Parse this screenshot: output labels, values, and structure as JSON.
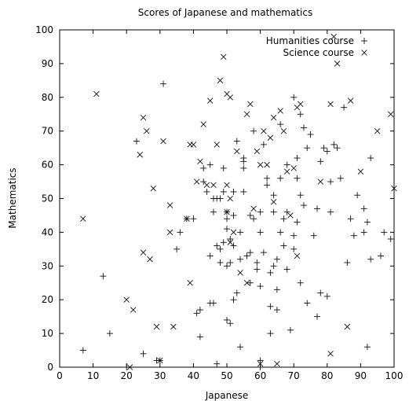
{
  "chart_data": {
    "type": "scatter",
    "title": "Scores of Japanese and mathematics",
    "xlabel": "Japanese",
    "ylabel": "Mathematics",
    "xlim": [
      0,
      100
    ],
    "ylim": [
      0,
      100
    ],
    "xticks": [
      0,
      10,
      20,
      30,
      40,
      50,
      60,
      70,
      80,
      90,
      100
    ],
    "yticks": [
      0,
      10,
      20,
      30,
      40,
      50,
      60,
      70,
      80,
      90,
      100
    ],
    "grid": false,
    "legend_position": "top-right",
    "series": [
      {
        "name": "Humanities course",
        "marker": "plus",
        "points": [
          [
            7,
            5
          ],
          [
            13,
            27
          ],
          [
            15,
            10
          ],
          [
            20,
            0
          ],
          [
            23,
            67
          ],
          [
            25,
            4
          ],
          [
            29,
            2
          ],
          [
            30,
            2
          ],
          [
            31,
            84
          ],
          [
            35,
            35
          ],
          [
            36,
            40
          ],
          [
            38,
            44
          ],
          [
            40,
            44
          ],
          [
            41,
            16
          ],
          [
            42,
            17
          ],
          [
            42,
            9
          ],
          [
            43,
            59
          ],
          [
            43,
            55
          ],
          [
            44,
            52
          ],
          [
            45,
            19
          ],
          [
            45,
            33
          ],
          [
            45,
            60
          ],
          [
            46,
            19
          ],
          [
            46,
            46
          ],
          [
            46,
            50
          ],
          [
            47,
            36
          ],
          [
            47,
            50
          ],
          [
            47,
            1
          ],
          [
            48,
            31
          ],
          [
            48,
            35
          ],
          [
            48,
            50
          ],
          [
            49,
            37
          ],
          [
            49,
            52
          ],
          [
            49,
            59
          ],
          [
            50,
            41
          ],
          [
            50,
            44
          ],
          [
            50,
            46
          ],
          [
            50,
            30
          ],
          [
            50,
            14
          ],
          [
            51,
            38
          ],
          [
            51,
            31
          ],
          [
            51,
            13
          ],
          [
            52,
            45
          ],
          [
            52,
            52
          ],
          [
            52,
            20
          ],
          [
            52,
            36
          ],
          [
            53,
            67
          ],
          [
            53,
            22
          ],
          [
            54,
            32
          ],
          [
            54,
            6
          ],
          [
            54,
            40
          ],
          [
            55,
            52
          ],
          [
            55,
            59
          ],
          [
            55,
            62
          ],
          [
            55,
            61
          ],
          [
            56,
            33
          ],
          [
            57,
            25
          ],
          [
            57,
            34
          ],
          [
            57,
            45
          ],
          [
            58,
            44
          ],
          [
            58,
            70
          ],
          [
            59,
            31
          ],
          [
            59,
            29
          ],
          [
            60,
            46
          ],
          [
            60,
            2
          ],
          [
            60,
            40
          ],
          [
            60,
            24
          ],
          [
            60,
            0
          ],
          [
            61,
            34
          ],
          [
            61,
            66
          ],
          [
            62,
            54
          ],
          [
            62,
            56
          ],
          [
            63,
            18
          ],
          [
            63,
            28
          ],
          [
            63,
            10
          ],
          [
            64,
            51
          ],
          [
            64,
            46
          ],
          [
            64,
            30
          ],
          [
            65,
            32
          ],
          [
            65,
            23
          ],
          [
            65,
            17
          ],
          [
            66,
            40
          ],
          [
            66,
            56
          ],
          [
            66,
            72
          ],
          [
            67,
            44
          ],
          [
            67,
            36
          ],
          [
            68,
            46
          ],
          [
            68,
            60
          ],
          [
            68,
            29
          ],
          [
            69,
            11
          ],
          [
            70,
            80
          ],
          [
            70,
            35
          ],
          [
            70,
            39
          ],
          [
            71,
            56
          ],
          [
            71,
            62
          ],
          [
            71,
            43
          ],
          [
            72,
            25
          ],
          [
            72,
            51
          ],
          [
            72,
            75
          ],
          [
            73,
            48
          ],
          [
            73,
            71
          ],
          [
            74,
            65
          ],
          [
            74,
            19
          ],
          [
            75,
            69
          ],
          [
            76,
            39
          ],
          [
            77,
            15
          ],
          [
            77,
            47
          ],
          [
            78,
            61
          ],
          [
            78,
            22
          ],
          [
            79,
            65
          ],
          [
            80,
            21
          ],
          [
            80,
            64
          ],
          [
            81,
            46
          ],
          [
            81,
            55
          ],
          [
            82,
            66
          ],
          [
            83,
            65
          ],
          [
            84,
            56
          ],
          [
            85,
            77
          ],
          [
            86,
            31
          ],
          [
            87,
            44
          ],
          [
            88,
            39
          ],
          [
            89,
            51
          ],
          [
            91,
            40
          ],
          [
            91,
            47
          ],
          [
            92,
            6
          ],
          [
            92,
            43
          ],
          [
            93,
            62
          ],
          [
            93,
            32
          ],
          [
            96,
            33
          ],
          [
            97,
            40
          ],
          [
            99,
            38
          ]
        ]
      },
      {
        "name": "Science course",
        "marker": "x",
        "points": [
          [
            7,
            44
          ],
          [
            11,
            81
          ],
          [
            20,
            20
          ],
          [
            21,
            0
          ],
          [
            22,
            17
          ],
          [
            24,
            63
          ],
          [
            25,
            34
          ],
          [
            25,
            74
          ],
          [
            26,
            70
          ],
          [
            27,
            32
          ],
          [
            28,
            53
          ],
          [
            29,
            12
          ],
          [
            30,
            2
          ],
          [
            31,
            67
          ],
          [
            33,
            40
          ],
          [
            33,
            48
          ],
          [
            34,
            12
          ],
          [
            38,
            44
          ],
          [
            39,
            66
          ],
          [
            39,
            25
          ],
          [
            40,
            66
          ],
          [
            41,
            55
          ],
          [
            42,
            61
          ],
          [
            43,
            72
          ],
          [
            44,
            54
          ],
          [
            45,
            79
          ],
          [
            46,
            54
          ],
          [
            47,
            66
          ],
          [
            48,
            85
          ],
          [
            49,
            92
          ],
          [
            50,
            81
          ],
          [
            50,
            54
          ],
          [
            50,
            46
          ],
          [
            51,
            80
          ],
          [
            51,
            37
          ],
          [
            51,
            50
          ],
          [
            52,
            40
          ],
          [
            53,
            64
          ],
          [
            54,
            28
          ],
          [
            56,
            75
          ],
          [
            56,
            25
          ],
          [
            57,
            78
          ],
          [
            58,
            47
          ],
          [
            59,
            64
          ],
          [
            60,
            60
          ],
          [
            60,
            1
          ],
          [
            61,
            70
          ],
          [
            62,
            60
          ],
          [
            63,
            68
          ],
          [
            64,
            74
          ],
          [
            64,
            49
          ],
          [
            65,
            1
          ],
          [
            66,
            76
          ],
          [
            67,
            70
          ],
          [
            68,
            58
          ],
          [
            69,
            45
          ],
          [
            70,
            59
          ],
          [
            71,
            77
          ],
          [
            71,
            33
          ],
          [
            72,
            78
          ],
          [
            78,
            55
          ],
          [
            81,
            4
          ],
          [
            81,
            78
          ],
          [
            82,
            98
          ],
          [
            83,
            90
          ],
          [
            86,
            12
          ],
          [
            87,
            79
          ],
          [
            90,
            58
          ],
          [
            95,
            70
          ],
          [
            99,
            75
          ],
          [
            100,
            53
          ]
        ]
      }
    ]
  }
}
